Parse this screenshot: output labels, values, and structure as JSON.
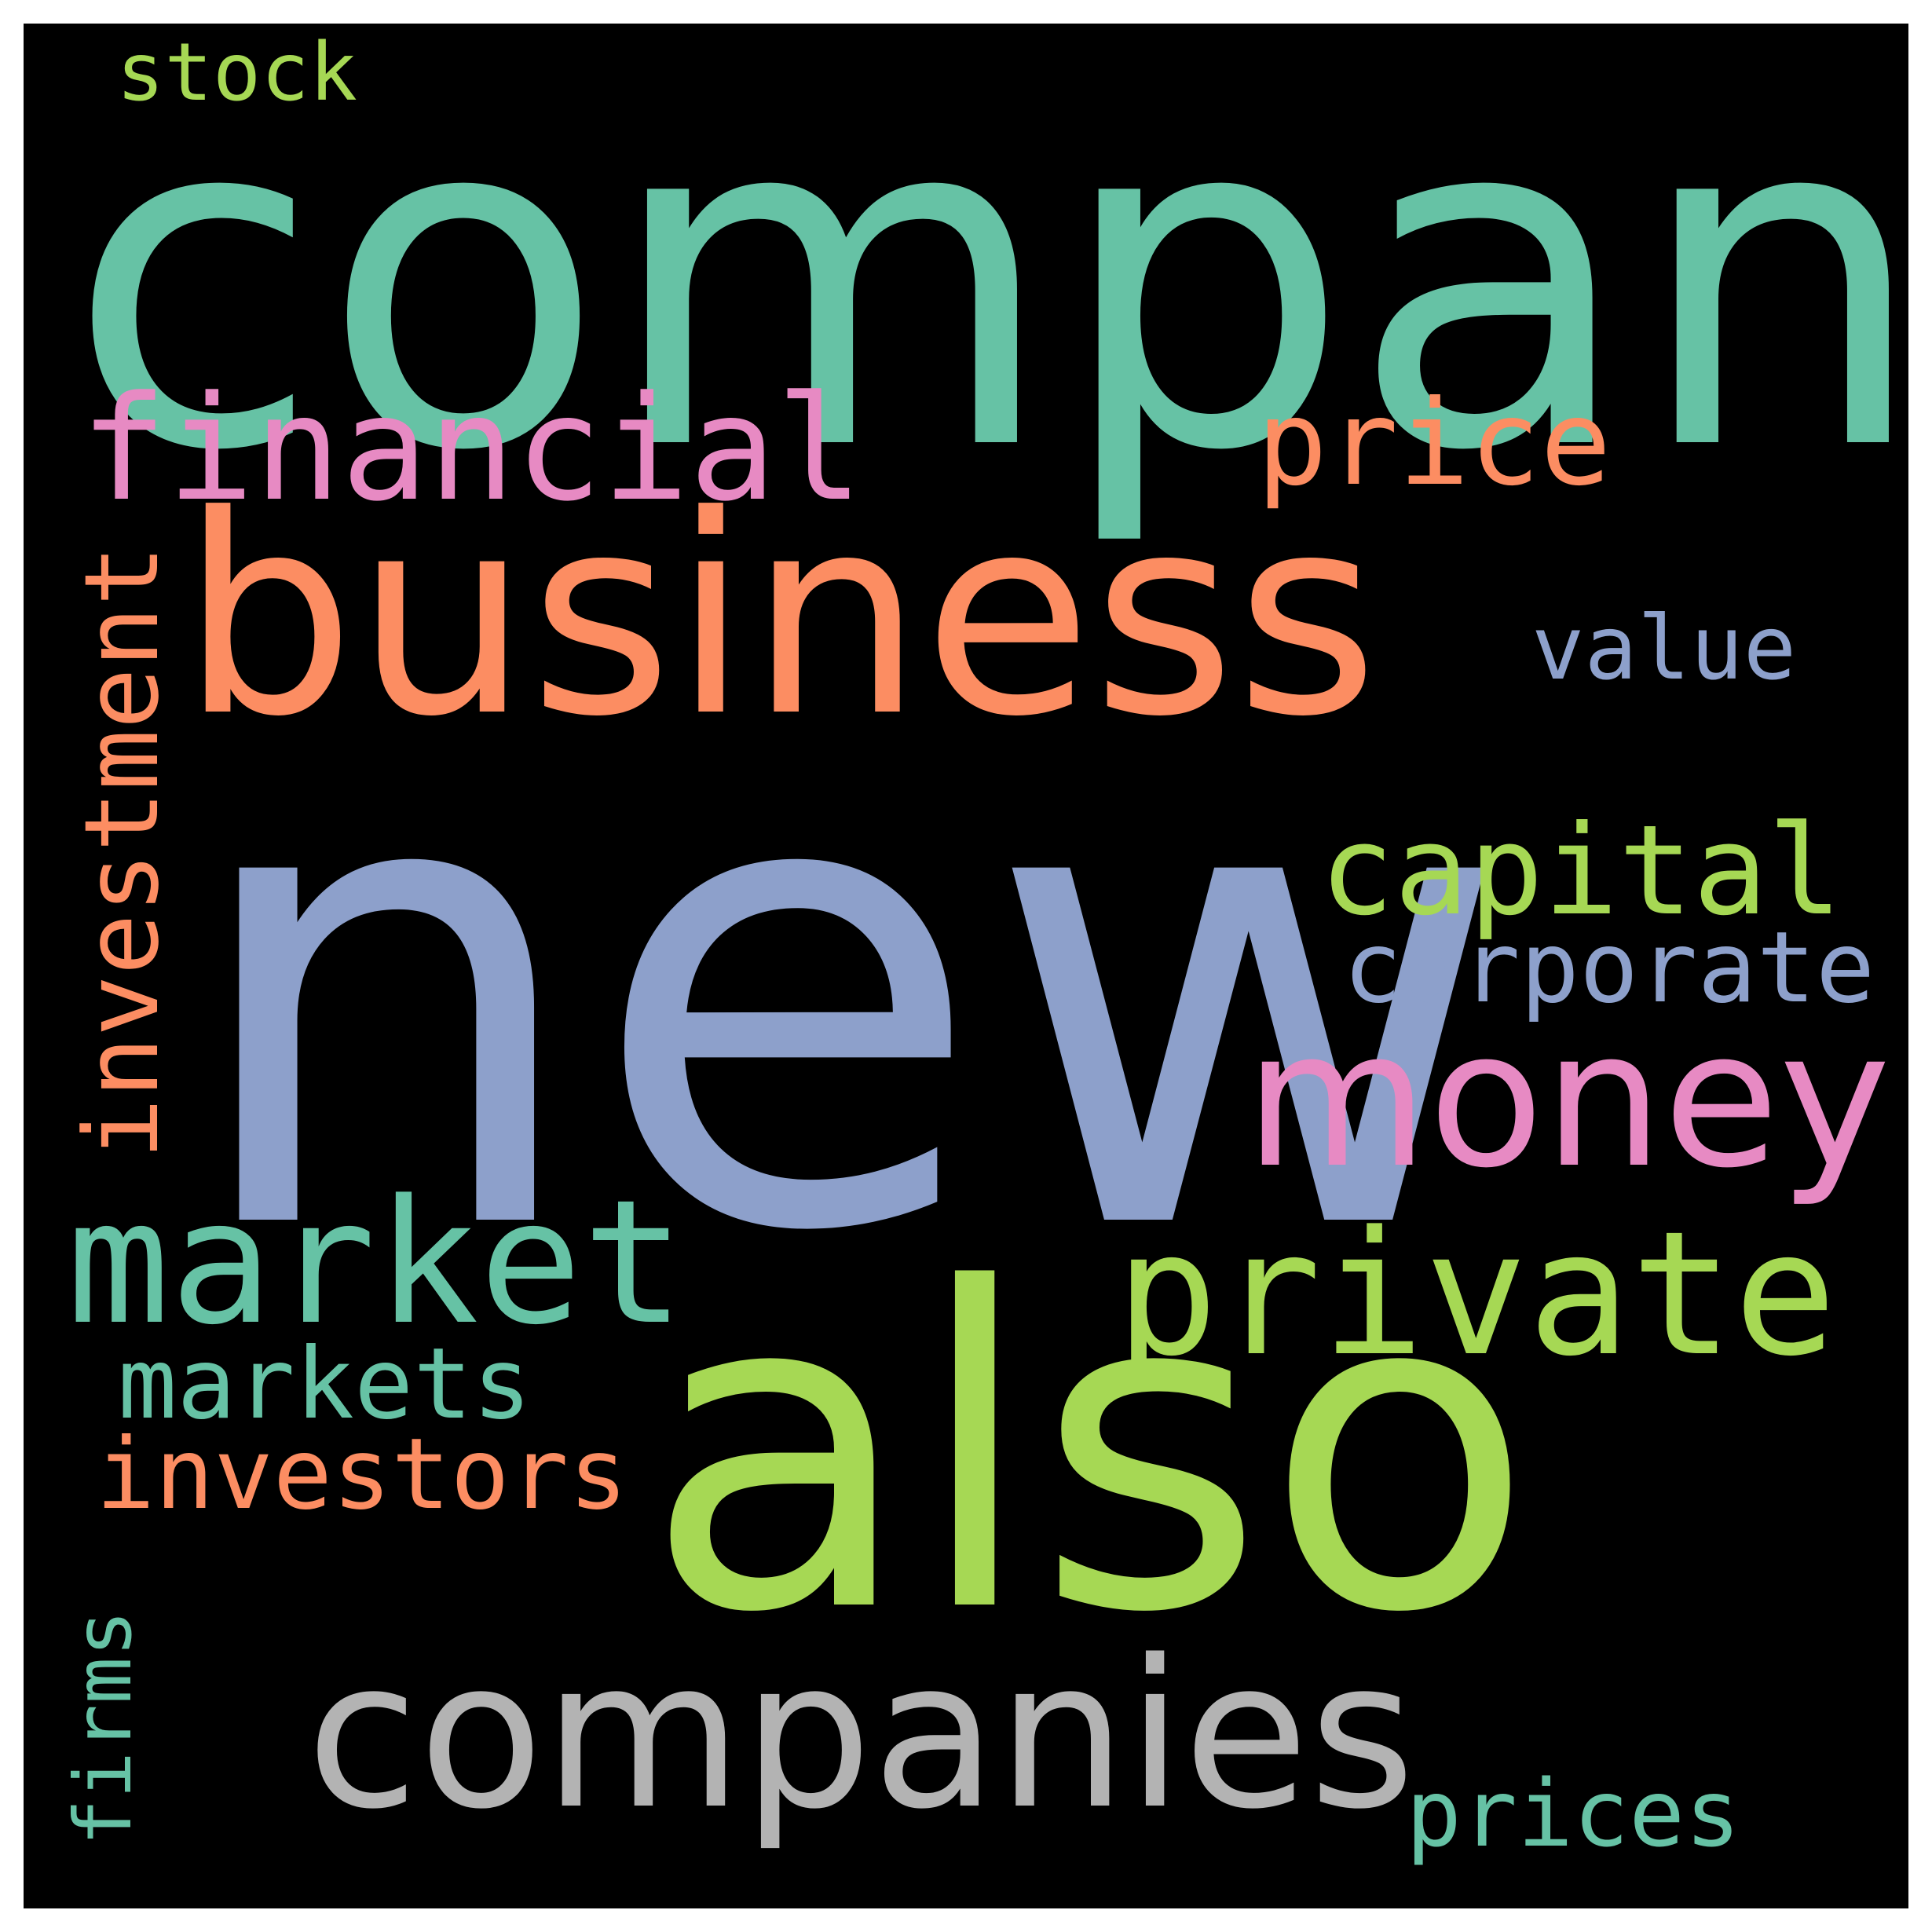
{
  "words": {
    "company": {
      "text": "company",
      "color": "#66c2a5"
    },
    "new": {
      "text": "new",
      "color": "#8da0cb"
    },
    "business": {
      "text": "business",
      "color": "#fc8d62"
    },
    "also": {
      "text": "also",
      "color": "#a6d854"
    },
    "companies": {
      "text": "companies",
      "color": "#b3b3b3"
    },
    "money": {
      "text": "money",
      "color": "#e78ac3"
    },
    "private": {
      "text": "private",
      "color": "#a6d854"
    },
    "market": {
      "text": "market",
      "color": "#66c2a5"
    },
    "financial": {
      "text": "financial",
      "color": "#e78ac3"
    },
    "investment": {
      "text": "investment",
      "color": "#fc8d62"
    },
    "capital": {
      "text": "capital",
      "color": "#a6d854"
    },
    "price": {
      "text": "price",
      "color": "#fc8d62"
    },
    "corporate": {
      "text": "corporate",
      "color": "#8da0cb"
    },
    "markets": {
      "text": "markets",
      "color": "#66c2a5"
    },
    "investors": {
      "text": "investors",
      "color": "#fc8d62"
    },
    "value": {
      "text": "value",
      "color": "#8da0cb"
    },
    "prices": {
      "text": "prices",
      "color": "#66c2a5"
    },
    "stock": {
      "text": "stock",
      "color": "#a6d854"
    },
    "firms": {
      "text": "firms",
      "color": "#66c2a5"
    }
  }
}
